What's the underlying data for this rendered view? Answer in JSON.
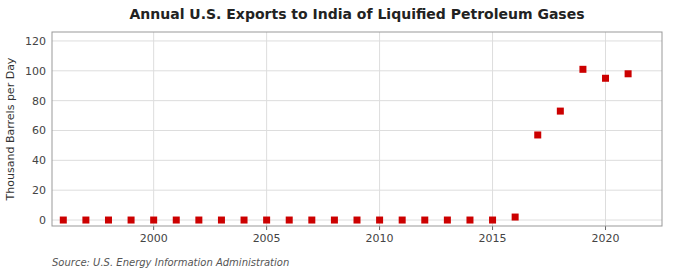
{
  "chart_data": {
    "type": "scatter",
    "title": "Annual U.S. Exports to India of Liquified Petroleum Gases",
    "ylabel": "Thousand Barrels per Day",
    "source": "Source: U.S. Energy Information Administration",
    "x": [
      1996,
      1997,
      1998,
      1999,
      2000,
      2001,
      2002,
      2003,
      2004,
      2005,
      2006,
      2007,
      2008,
      2009,
      2010,
      2011,
      2012,
      2013,
      2014,
      2015,
      2016,
      2017,
      2018,
      2019,
      2020,
      2021
    ],
    "values": [
      0,
      0,
      0,
      0,
      0,
      0,
      0,
      0,
      0,
      0,
      0,
      0,
      0,
      0,
      0,
      0,
      0,
      0,
      0,
      0,
      2,
      57,
      73,
      101,
      95,
      98
    ],
    "color": "#cc0000",
    "marker": "square",
    "xlim": [
      1995.5,
      2022.5
    ],
    "xticks": [
      2000,
      2005,
      2010,
      2015,
      2020
    ],
    "ylim": [
      -4,
      126
    ],
    "yticks": [
      0,
      20,
      40,
      60,
      80,
      100,
      120
    ],
    "grid": true
  }
}
